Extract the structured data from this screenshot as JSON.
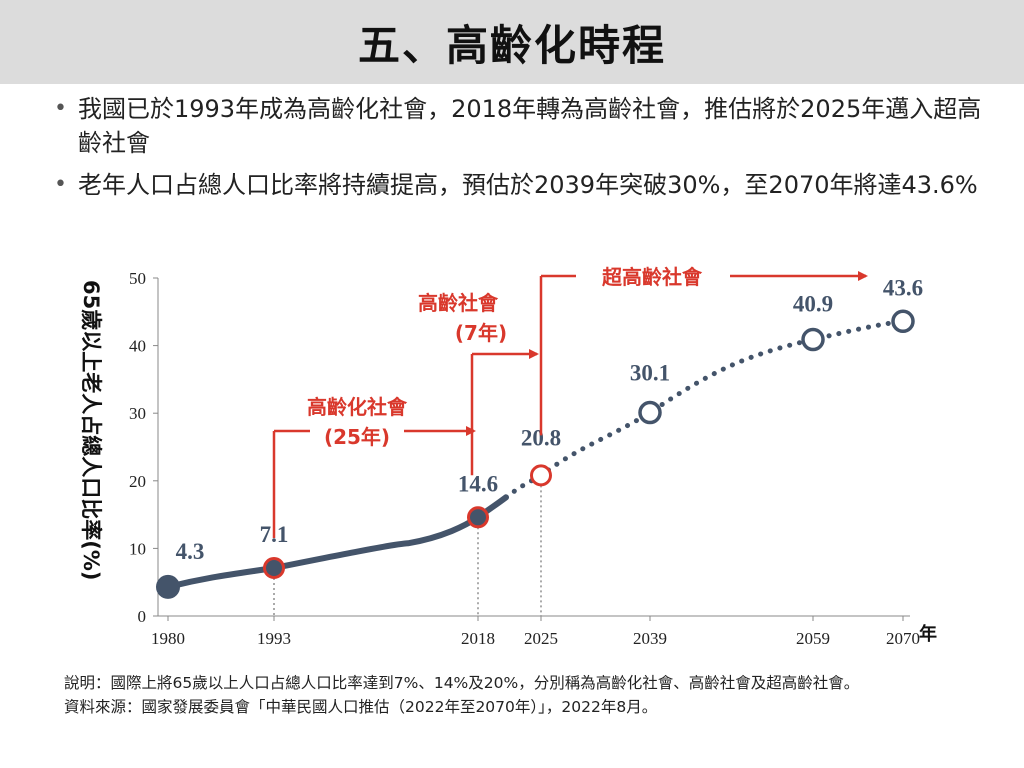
{
  "title": "五、高齡化時程",
  "bullets": [
    "我國已於1993年成為高齡化社會，2018年轉為高齡社會，推估將於2025年邁入超高齡社會",
    "老年人口占總人口比率將持續提高，預估於2039年突破30%，至2070年將達43.6%"
  ],
  "chart_data": {
    "type": "line",
    "ylabel": "65歲以上老人占總人口比率(%)",
    "xlabel": "年",
    "ylim": [
      0,
      50
    ],
    "yticks": [
      "0",
      "10",
      "20",
      "30",
      "40",
      "50"
    ],
    "x_ticks": [
      "1980",
      "1993",
      "2018",
      "2025",
      "2039",
      "2059",
      "2070"
    ],
    "points": [
      {
        "x": 1980,
        "y": 4.3,
        "label": "4.3",
        "marker": "filled-navy"
      },
      {
        "x": 1993,
        "y": 7.1,
        "label": "7.1",
        "marker": "red-ring-filled"
      },
      {
        "x": 2018,
        "y": 14.6,
        "label": "14.6",
        "marker": "red-ring-filled"
      },
      {
        "x": 2025,
        "y": 20.8,
        "label": "20.8",
        "marker": "red-open"
      },
      {
        "x": 2039,
        "y": 30.1,
        "label": "30.1",
        "marker": "navy-open"
      },
      {
        "x": 2059,
        "y": 40.9,
        "label": "40.9",
        "marker": "navy-open"
      },
      {
        "x": 2070,
        "y": 43.6,
        "label": "43.6",
        "marker": "navy-open"
      }
    ],
    "actual_until": 2021,
    "stages": [
      {
        "label": "高齡化社會",
        "duration": "(25年)",
        "from": 1993,
        "to": 2018
      },
      {
        "label": "高齡社會",
        "duration": "(7年)",
        "from": 2018,
        "to": 2025
      },
      {
        "label": "超高齡社會",
        "from": 2025
      }
    ],
    "colors": {
      "line": "#44546a",
      "accent": "#d9382c",
      "value_label": "#44546a"
    }
  },
  "notes": {
    "label": "說明：",
    "text": "國際上將65歲以上人口占總人口比率達到7%、14%及20%，分別稱為高齡化社會、高齡社會及超高齡社會。",
    "source": "資料來源：國家發展委員會「中華民國人口推估（2022年至2070年）」，2022年8月。"
  }
}
